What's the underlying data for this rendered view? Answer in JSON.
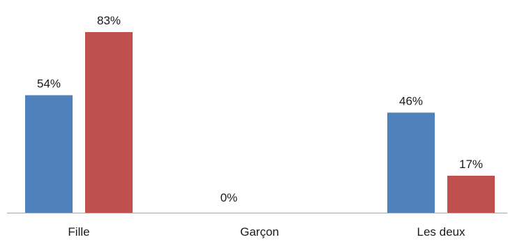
{
  "chart_data": {
    "type": "bar",
    "categories": [
      "Fille",
      "Garçon",
      "Les deux"
    ],
    "series": [
      {
        "values": [
          54,
          0,
          46
        ],
        "labels": [
          "54%",
          "",
          "46%"
        ],
        "color": "#4F81BD"
      },
      {
        "values": [
          83,
          null,
          17
        ],
        "labels": [
          "83%",
          "0%",
          "17%"
        ],
        "color": "#C0504D"
      }
    ],
    "ylim": [
      0,
      100
    ],
    "grid": false,
    "legend": "none",
    "xlabel": "",
    "ylabel": "",
    "title": ""
  }
}
